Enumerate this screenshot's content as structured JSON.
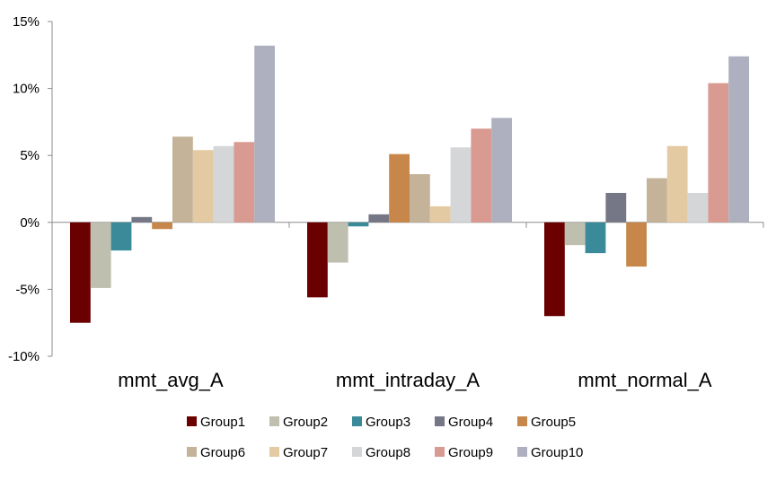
{
  "chart_data": {
    "type": "bar",
    "title": "",
    "xlabel": "",
    "ylabel": "",
    "ylim": [
      -10,
      15
    ],
    "y_ticks": [
      15,
      10,
      5,
      0,
      -5,
      -10
    ],
    "y_tick_labels": [
      "15%",
      "10%",
      "5%",
      "0%",
      "-5%",
      "-10%"
    ],
    "grid": false,
    "legend_position": "bottom",
    "categories": [
      "mmt_avg_A",
      "mmt_intraday_A",
      "mmt_normal_A"
    ],
    "series": [
      {
        "name": "Group1",
        "color": "#6b0000",
        "values": [
          -7.5,
          -5.6,
          -7.0
        ]
      },
      {
        "name": "Group2",
        "color": "#bfbfb0",
        "values": [
          -4.9,
          -3.0,
          -1.7
        ]
      },
      {
        "name": "Group3",
        "color": "#3b8a9a",
        "values": [
          -2.1,
          -0.3,
          -2.3
        ]
      },
      {
        "name": "Group4",
        "color": "#757786",
        "values": [
          0.4,
          0.6,
          2.2
        ]
      },
      {
        "name": "Group5",
        "color": "#c8874a",
        "values": [
          -0.5,
          5.1,
          -3.3
        ]
      },
      {
        "name": "Group6",
        "color": "#c4b398",
        "values": [
          6.4,
          3.6,
          3.3
        ]
      },
      {
        "name": "Group7",
        "color": "#e3caa2",
        "values": [
          5.4,
          1.2,
          5.7
        ]
      },
      {
        "name": "Group8",
        "color": "#d5d6d8",
        "values": [
          5.7,
          5.6,
          2.2
        ]
      },
      {
        "name": "Group9",
        "color": "#d99a92",
        "values": [
          6.0,
          7.0,
          10.4
        ]
      },
      {
        "name": "Group10",
        "color": "#aeb0bf",
        "values": [
          13.2,
          7.8,
          12.4
        ]
      }
    ]
  }
}
